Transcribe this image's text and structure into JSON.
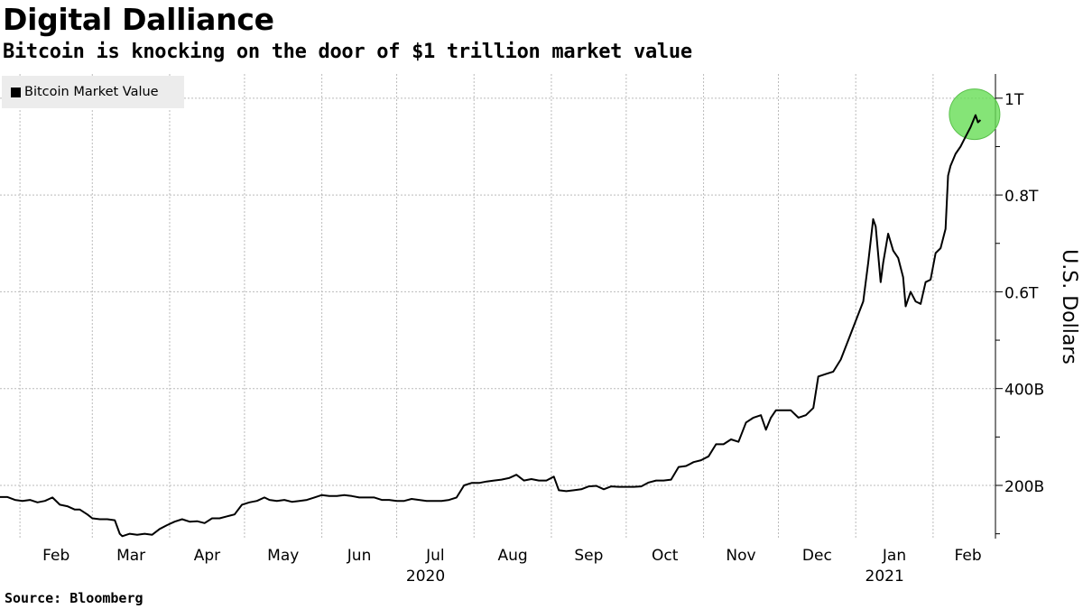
{
  "title": "Digital Dalliance",
  "subtitle": "Bitcoin is knocking on the door of $1 trillion market value",
  "source": "Source: Bloomberg",
  "colors": {
    "line": "#000000",
    "highlight": "#66dd55",
    "grid": "#bbbbbb",
    "legend_bg": "#ececec"
  },
  "chart_data": {
    "type": "line",
    "title": "Digital Dalliance",
    "subtitle": "Bitcoin is knocking on the door of $1 trillion market value",
    "ylabel": "U.S. Dollars",
    "y_axis_side": "right",
    "ylim": [
      90,
      1050
    ],
    "y_ticks": [
      {
        "value": 200,
        "label": "200B"
      },
      {
        "value": 400,
        "label": "400B"
      },
      {
        "value": 600,
        "label": "0.6T"
      },
      {
        "value": 800,
        "label": "0.8T"
      },
      {
        "value": 1000,
        "label": "1T"
      }
    ],
    "xlim": [
      "2020-02-01",
      "2021-02-26"
    ],
    "x_ticks": [
      {
        "date": "2020-02-01",
        "label": "Feb"
      },
      {
        "date": "2020-03-01",
        "label": "Mar"
      },
      {
        "date": "2020-04-01",
        "label": "Apr"
      },
      {
        "date": "2020-05-01",
        "label": "May"
      },
      {
        "date": "2020-06-01",
        "label": "Jun"
      },
      {
        "date": "2020-07-01",
        "label": "Jul"
      },
      {
        "date": "2020-08-01",
        "label": "Aug"
      },
      {
        "date": "2020-09-01",
        "label": "Sep"
      },
      {
        "date": "2020-10-01",
        "label": "Oct"
      },
      {
        "date": "2020-11-01",
        "label": "Nov"
      },
      {
        "date": "2020-12-01",
        "label": "Dec"
      },
      {
        "date": "2021-01-01",
        "label": "Jan"
      },
      {
        "date": "2021-02-01",
        "label": "Feb"
      }
    ],
    "year_labels": [
      {
        "date": "2020-07-01",
        "label": "2020"
      },
      {
        "date": "2021-01-01",
        "label": "2021"
      }
    ],
    "grid": true,
    "legend": {
      "position": "top-left",
      "entries": [
        "Bitcoin Market Value"
      ]
    },
    "highlight": {
      "date": "2021-02-18",
      "value": 965,
      "description": "green circle around latest peak"
    },
    "series": [
      {
        "name": "Bitcoin Market Value",
        "unit": "billion USD",
        "points": [
          [
            "2020-01-24",
            176
          ],
          [
            "2020-01-27",
            176
          ],
          [
            "2020-01-30",
            170
          ],
          [
            "2020-02-02",
            168
          ],
          [
            "2020-02-05",
            170
          ],
          [
            "2020-02-08",
            165
          ],
          [
            "2020-02-11",
            168
          ],
          [
            "2020-02-14",
            175
          ],
          [
            "2020-02-17",
            160
          ],
          [
            "2020-02-20",
            157
          ],
          [
            "2020-02-23",
            150
          ],
          [
            "2020-02-25",
            150
          ],
          [
            "2020-02-28",
            140
          ],
          [
            "2020-03-01",
            132
          ],
          [
            "2020-03-04",
            130
          ],
          [
            "2020-03-07",
            130
          ],
          [
            "2020-03-10",
            128
          ],
          [
            "2020-03-12",
            100
          ],
          [
            "2020-03-13",
            95
          ],
          [
            "2020-03-16",
            100
          ],
          [
            "2020-03-19",
            98
          ],
          [
            "2020-03-22",
            100
          ],
          [
            "2020-03-25",
            98
          ],
          [
            "2020-03-28",
            110
          ],
          [
            "2020-03-31",
            118
          ],
          [
            "2020-04-03",
            125
          ],
          [
            "2020-04-06",
            130
          ],
          [
            "2020-04-09",
            125
          ],
          [
            "2020-04-12",
            126
          ],
          [
            "2020-04-15",
            122
          ],
          [
            "2020-04-18",
            132
          ],
          [
            "2020-04-21",
            132
          ],
          [
            "2020-04-24",
            136
          ],
          [
            "2020-04-27",
            140
          ],
          [
            "2020-04-30",
            160
          ],
          [
            "2020-05-03",
            165
          ],
          [
            "2020-05-06",
            168
          ],
          [
            "2020-05-09",
            175
          ],
          [
            "2020-05-11",
            170
          ],
          [
            "2020-05-14",
            168
          ],
          [
            "2020-05-17",
            170
          ],
          [
            "2020-05-20",
            166
          ],
          [
            "2020-05-23",
            168
          ],
          [
            "2020-05-26",
            170
          ],
          [
            "2020-05-29",
            175
          ],
          [
            "2020-06-01",
            180
          ],
          [
            "2020-06-04",
            178
          ],
          [
            "2020-06-07",
            178
          ],
          [
            "2020-06-10",
            180
          ],
          [
            "2020-06-13",
            178
          ],
          [
            "2020-06-16",
            175
          ],
          [
            "2020-06-19",
            175
          ],
          [
            "2020-06-22",
            175
          ],
          [
            "2020-06-25",
            170
          ],
          [
            "2020-06-28",
            170
          ],
          [
            "2020-07-01",
            168
          ],
          [
            "2020-07-04",
            168
          ],
          [
            "2020-07-07",
            172
          ],
          [
            "2020-07-10",
            170
          ],
          [
            "2020-07-13",
            168
          ],
          [
            "2020-07-16",
            168
          ],
          [
            "2020-07-19",
            168
          ],
          [
            "2020-07-22",
            170
          ],
          [
            "2020-07-25",
            175
          ],
          [
            "2020-07-28",
            200
          ],
          [
            "2020-07-31",
            205
          ],
          [
            "2020-08-03",
            205
          ],
          [
            "2020-08-06",
            208
          ],
          [
            "2020-08-09",
            210
          ],
          [
            "2020-08-12",
            212
          ],
          [
            "2020-08-15",
            215
          ],
          [
            "2020-08-18",
            222
          ],
          [
            "2020-08-21",
            210
          ],
          [
            "2020-08-24",
            213
          ],
          [
            "2020-08-27",
            210
          ],
          [
            "2020-08-30",
            210
          ],
          [
            "2020-09-02",
            218
          ],
          [
            "2020-09-04",
            190
          ],
          [
            "2020-09-07",
            188
          ],
          [
            "2020-09-10",
            190
          ],
          [
            "2020-09-13",
            192
          ],
          [
            "2020-09-16",
            198
          ],
          [
            "2020-09-19",
            199
          ],
          [
            "2020-09-22",
            192
          ],
          [
            "2020-09-25",
            198
          ],
          [
            "2020-09-28",
            197
          ],
          [
            "2020-10-01",
            197
          ],
          [
            "2020-10-04",
            197
          ],
          [
            "2020-10-07",
            198
          ],
          [
            "2020-10-10",
            206
          ],
          [
            "2020-10-13",
            210
          ],
          [
            "2020-10-16",
            210
          ],
          [
            "2020-10-19",
            212
          ],
          [
            "2020-10-22",
            238
          ],
          [
            "2020-10-25",
            240
          ],
          [
            "2020-10-28",
            248
          ],
          [
            "2020-10-31",
            252
          ],
          [
            "2020-11-03",
            260
          ],
          [
            "2020-11-06",
            285
          ],
          [
            "2020-11-09",
            285
          ],
          [
            "2020-11-12",
            295
          ],
          [
            "2020-11-15",
            290
          ],
          [
            "2020-11-18",
            330
          ],
          [
            "2020-11-21",
            340
          ],
          [
            "2020-11-24",
            345
          ],
          [
            "2020-11-26",
            315
          ],
          [
            "2020-11-28",
            340
          ],
          [
            "2020-11-30",
            355
          ],
          [
            "2020-12-03",
            355
          ],
          [
            "2020-12-06",
            355
          ],
          [
            "2020-12-09",
            340
          ],
          [
            "2020-12-12",
            345
          ],
          [
            "2020-12-15",
            360
          ],
          [
            "2020-12-17",
            425
          ],
          [
            "2020-12-20",
            430
          ],
          [
            "2020-12-23",
            435
          ],
          [
            "2020-12-26",
            460
          ],
          [
            "2020-12-29",
            500
          ],
          [
            "2021-01-01",
            540
          ],
          [
            "2021-01-04",
            580
          ],
          [
            "2021-01-06",
            660
          ],
          [
            "2021-01-08",
            750
          ],
          [
            "2021-01-09",
            735
          ],
          [
            "2021-01-11",
            620
          ],
          [
            "2021-01-12",
            660
          ],
          [
            "2021-01-14",
            720
          ],
          [
            "2021-01-16",
            685
          ],
          [
            "2021-01-18",
            670
          ],
          [
            "2021-01-20",
            630
          ],
          [
            "2021-01-21",
            570
          ],
          [
            "2021-01-23",
            600
          ],
          [
            "2021-01-25",
            580
          ],
          [
            "2021-01-27",
            575
          ],
          [
            "2021-01-29",
            620
          ],
          [
            "2021-01-31",
            625
          ],
          [
            "2021-02-02",
            680
          ],
          [
            "2021-02-04",
            690
          ],
          [
            "2021-02-06",
            730
          ],
          [
            "2021-02-07",
            840
          ],
          [
            "2021-02-08",
            860
          ],
          [
            "2021-02-10",
            885
          ],
          [
            "2021-02-12",
            900
          ],
          [
            "2021-02-14",
            920
          ],
          [
            "2021-02-16",
            940
          ],
          [
            "2021-02-18",
            965
          ],
          [
            "2021-02-19",
            950
          ],
          [
            "2021-02-20",
            955
          ]
        ]
      }
    ]
  }
}
